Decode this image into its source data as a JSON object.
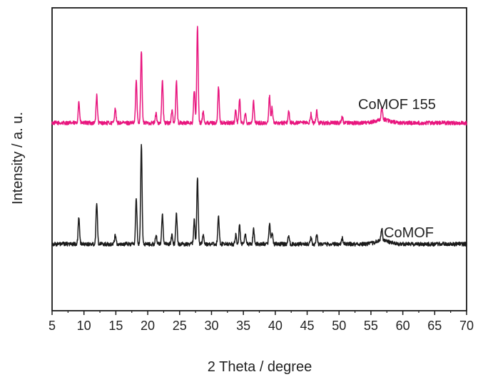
{
  "chart_data": {
    "type": "line",
    "title": "",
    "xlabel": "2 Theta / degree",
    "ylabel": "Intensity / a. u.",
    "xlim": [
      5,
      70
    ],
    "ylim": [
      0,
      100
    ],
    "x_ticks": [
      "5",
      "10",
      "15",
      "20",
      "25",
      "30",
      "35",
      "40",
      "45",
      "50",
      "55",
      "60",
      "65",
      "70"
    ],
    "y_ticks": [],
    "grid": false,
    "legend": "none",
    "series": [
      {
        "name": "CoMOF 155",
        "color": "#e8157e",
        "baseline": 62,
        "peaks": [
          [
            9.2,
            7
          ],
          [
            12.0,
            9
          ],
          [
            14.9,
            5
          ],
          [
            18.2,
            14
          ],
          [
            19.0,
            24
          ],
          [
            21.3,
            3
          ],
          [
            22.3,
            14
          ],
          [
            23.8,
            4
          ],
          [
            24.5,
            14
          ],
          [
            27.3,
            11
          ],
          [
            27.8,
            32
          ],
          [
            28.7,
            4
          ],
          [
            31.1,
            12
          ],
          [
            33.8,
            4
          ],
          [
            34.4,
            8
          ],
          [
            35.3,
            3
          ],
          [
            36.6,
            7
          ],
          [
            39.1,
            9
          ],
          [
            39.5,
            5
          ],
          [
            42.1,
            4
          ],
          [
            45.6,
            3
          ],
          [
            46.5,
            4
          ],
          [
            50.5,
            2
          ],
          [
            56.7,
            4
          ]
        ]
      },
      {
        "name": "CoMOF",
        "color": "#1a1a1a",
        "baseline": 22,
        "peaks": [
          [
            9.2,
            9
          ],
          [
            12.0,
            14
          ],
          [
            14.9,
            3
          ],
          [
            18.2,
            15
          ],
          [
            19.0,
            33
          ],
          [
            21.3,
            3
          ],
          [
            22.3,
            10
          ],
          [
            23.8,
            3
          ],
          [
            24.5,
            10
          ],
          [
            27.3,
            8
          ],
          [
            27.8,
            22
          ],
          [
            28.7,
            3
          ],
          [
            31.1,
            9
          ],
          [
            33.8,
            3
          ],
          [
            34.4,
            6
          ],
          [
            35.3,
            3
          ],
          [
            36.6,
            5
          ],
          [
            39.1,
            7
          ],
          [
            39.5,
            4
          ],
          [
            42.1,
            3
          ],
          [
            45.6,
            2
          ],
          [
            46.5,
            3
          ],
          [
            50.5,
            2
          ],
          [
            56.7,
            4
          ]
        ]
      }
    ]
  }
}
